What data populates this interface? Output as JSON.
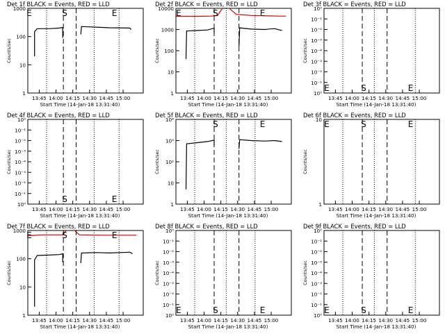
{
  "chart_data": [
    {
      "type": "line",
      "title": "Det 1f BLACK = Events, RED = LLD",
      "ylabel": "Counts/sec",
      "xlabel": "Start Time (14-Jan-18 13:31:40)",
      "yscale": "log",
      "ylim": [
        1,
        1000
      ],
      "ytick_labels": [
        "1",
        "10",
        "100",
        "1000"
      ],
      "xlim": [
        13.58,
        15.3
      ],
      "xtick_labels": [
        "13:45",
        "14:00",
        "14:15",
        "14:30",
        "14:45",
        "15:00"
      ],
      "markers": [
        {
          "label": "E",
          "time": 13.6,
          "pos": "top"
        },
        {
          "label": "S",
          "time": 14.13,
          "pos": "top"
        },
        {
          "label": "E",
          "time": 14.87,
          "pos": "top"
        }
      ],
      "dashed_lines": [
        14.11,
        14.3
      ],
      "dotted_lines": [
        13.86,
        14.57,
        14.94
      ],
      "series": [
        {
          "color": "#000000",
          "segments": [
            [
              [
                13.68,
                20
              ],
              [
                13.68,
                150
              ],
              [
                13.72,
                190
              ],
              [
                13.9,
                190
              ],
              [
                14.05,
                200
              ],
              [
                14.1,
                210
              ],
              [
                14.1,
                90
              ]
            ],
            [
              [
                14.37,
                120
              ],
              [
                14.38,
                225
              ],
              [
                14.6,
                215
              ],
              [
                14.8,
                205
              ],
              [
                15.1,
                200
              ],
              [
                15.12,
                175
              ]
            ]
          ]
        }
      ]
    },
    {
      "type": "line",
      "title": "Det 2f BLACK = Events, RED = LLD",
      "ylabel": "Counts/sec",
      "xlabel": "Start Time (14-Jan-18 13:31:40)",
      "yscale": "log",
      "ylim": [
        1,
        10000
      ],
      "ytick_labels": [
        "1",
        "10",
        "100",
        "1000",
        "10000"
      ],
      "xlim": [
        13.58,
        15.3
      ],
      "xtick_labels": [
        "13:45",
        "14:00",
        "14:15",
        "14:30",
        "14:45",
        "15:00"
      ],
      "markers": [
        {
          "label": "E",
          "time": 13.62,
          "pos": "top"
        },
        {
          "label": "S",
          "time": 14.17,
          "pos": "top"
        },
        {
          "label": "E",
          "time": 14.87,
          "pos": "top"
        }
      ],
      "dashed_lines": [
        14.15,
        14.52
      ],
      "dotted_lines": [
        13.86,
        14.33,
        14.76
      ],
      "series": [
        {
          "color": "#cc0000",
          "segments": [
            [
              [
                13.58,
                4200
              ],
              [
                13.9,
                4200
              ],
              [
                14.1,
                4300
              ],
              [
                14.2,
                4500
              ],
              [
                14.24,
                7000
              ],
              [
                14.27,
                9500
              ]
            ],
            [
              [
                14.38,
                9800
              ],
              [
                14.42,
                7500
              ],
              [
                14.48,
                5200
              ],
              [
                14.7,
                4600
              ],
              [
                15.1,
                4300
              ],
              [
                15.22,
                4300
              ]
            ]
          ]
        },
        {
          "color": "#000000",
          "segments": [
            [
              [
                13.73,
                40
              ],
              [
                13.74,
                850
              ],
              [
                13.9,
                900
              ],
              [
                14.05,
                950
              ],
              [
                14.15,
                1150
              ],
              [
                14.15,
                700
              ]
            ],
            [
              [
                14.52,
                160
              ],
              [
                14.53,
                1200
              ],
              [
                14.7,
                1050
              ],
              [
                14.9,
                1000
              ],
              [
                15.05,
                1100
              ],
              [
                15.16,
                900
              ]
            ]
          ]
        }
      ]
    },
    {
      "type": "line",
      "title": "Det 3f BLACK = Events, RED = LLD",
      "ylabel": "Counts/sec",
      "xlabel": "Start Time (14-Jan-18 13:31:40)",
      "yscale": "log",
      "ylim": [
        1,
        10
      ],
      "ytick_labels": [
        "10⁰",
        "10⁻¹",
        "10⁻²",
        "10⁻³",
        "10⁻⁴",
        "10⁻³",
        "10⁻²",
        "10⁻¹",
        "10⁰"
      ],
      "xlim": [
        13.58,
        15.3
      ],
      "xtick_labels": [
        "13:45",
        "14:00",
        "14:15",
        "14:30",
        "14:45",
        "15:00"
      ],
      "markers": [
        {
          "label": "E",
          "time": 13.62,
          "pos": "bottom"
        },
        {
          "label": "S",
          "time": 14.17,
          "pos": "bottom"
        },
        {
          "label": "E",
          "time": 14.87,
          "pos": "bottom"
        }
      ],
      "dashed_lines": [
        14.15,
        14.52
      ],
      "dotted_lines": [
        13.86,
        14.33,
        14.94
      ],
      "series": []
    },
    {
      "type": "line",
      "title": "Det 4f BLACK = Events, RED = LLD",
      "ylabel": "Counts/sec",
      "xlabel": "Start Time (14-Jan-18 13:31:40)",
      "yscale": "log",
      "ylim": [
        1,
        10
      ],
      "ytick_labels": [
        "10⁰",
        "10⁻¹",
        "10⁻²",
        "10⁻³",
        "10⁻⁴",
        "10⁻³",
        "10⁻²",
        "10⁻¹",
        "10⁰"
      ],
      "xlim": [
        13.58,
        15.3
      ],
      "xtick_labels": [
        "13:45",
        "14:00",
        "14:15",
        "14:30",
        "14:45",
        "15:00"
      ],
      "markers": [
        {
          "label": "S",
          "time": 14.13,
          "pos": "bottom"
        },
        {
          "label": "E",
          "time": 14.87,
          "pos": "bottom"
        }
      ],
      "dashed_lines": [
        14.11,
        14.3
      ],
      "dotted_lines": [
        13.86,
        14.57,
        14.94
      ],
      "series": []
    },
    {
      "type": "line",
      "title": "Det 5f BLACK = Events, RED = LLD",
      "ylabel": "Counts/sec",
      "xlabel": "Start Time (14-Jan-18 13:31:40)",
      "yscale": "log",
      "ylim": [
        1,
        10000
      ],
      "ytick_labels": [
        "1",
        "10",
        "10²",
        "10³",
        "10⁴"
      ],
      "xlim": [
        13.58,
        15.3
      ],
      "xtick_labels": [
        "13:45",
        "14:00",
        "14:15",
        "14:30",
        "14:45",
        "15:00"
      ],
      "markers": [
        {
          "label": "S",
          "time": 14.17,
          "pos": "top"
        },
        {
          "label": "E",
          "time": 14.87,
          "pos": "top"
        }
      ],
      "dashed_lines": [
        14.15,
        14.52
      ],
      "dotted_lines": [
        13.86,
        14.33,
        14.76
      ],
      "series": [
        {
          "color": "#000000",
          "segments": [
            [
              [
                13.73,
                5
              ],
              [
                13.74,
                700
              ],
              [
                13.9,
                800
              ],
              [
                14.05,
                900
              ],
              [
                14.15,
                1050
              ],
              [
                14.15,
                600
              ]
            ],
            [
              [
                14.52,
                400
              ],
              [
                14.53,
                1100
              ],
              [
                14.7,
                1000
              ],
              [
                14.9,
                950
              ],
              [
                15.05,
                1000
              ],
              [
                15.16,
                900
              ]
            ]
          ]
        }
      ]
    },
    {
      "type": "line",
      "title": "Det 6f BLACK = Events, RED = LLD",
      "ylabel": "Counts/sec",
      "xlabel": "Start Time (14-Jan-18 13:31:40)",
      "yscale": "log",
      "ylim": [
        1,
        10
      ],
      "ytick_labels": [
        "1",
        "10"
      ],
      "xlim": [
        13.58,
        15.3
      ],
      "xtick_labels": [
        "13:45",
        "14:00",
        "14:15",
        "14:30",
        "14:45",
        "15:00"
      ],
      "markers": [
        {
          "label": "E",
          "time": 13.62,
          "pos": "top"
        },
        {
          "label": "S",
          "time": 14.17,
          "pos": "top"
        },
        {
          "label": "E",
          "time": 14.87,
          "pos": "top"
        }
      ],
      "dashed_lines": [
        14.15,
        14.52
      ],
      "dotted_lines": [
        13.86,
        14.33,
        14.94
      ],
      "series": []
    },
    {
      "type": "line",
      "title": "Det 7f BLACK = Events, RED = LLD",
      "ylabel": "Counts/sec",
      "xlabel": "Start Time (14-Jan-18 13:31:40)",
      "yscale": "log",
      "ylim": [
        1,
        1000
      ],
      "ytick_labels": [
        "1",
        "10",
        "100",
        "1000"
      ],
      "xlim": [
        13.58,
        15.3
      ],
      "xtick_labels": [
        "13:45",
        "14:00",
        "14:15",
        "14:30",
        "14:45",
        "15:00"
      ],
      "markers": [
        {
          "label": "E",
          "time": 13.6,
          "pos": "top"
        },
        {
          "label": "S",
          "time": 14.13,
          "pos": "top"
        },
        {
          "label": "E",
          "time": 14.87,
          "pos": "top"
        }
      ],
      "dashed_lines": [
        14.11,
        14.3
      ],
      "dotted_lines": [
        13.86,
        14.57,
        14.94
      ],
      "series": [
        {
          "color": "#cc0000",
          "segments": [
            [
              [
                13.58,
                650
              ],
              [
                13.8,
                700
              ],
              [
                14.1,
                700
              ],
              [
                14.13,
                850
              ],
              [
                14.15,
                1000
              ]
            ],
            [
              [
                14.28,
                1000
              ],
              [
                14.31,
                850
              ],
              [
                14.35,
                700
              ],
              [
                14.7,
                680
              ],
              [
                15.1,
                680
              ],
              [
                15.2,
                680
              ]
            ]
          ]
        },
        {
          "color": "#000000",
          "segments": [
            [
              [
                13.68,
                2
              ],
              [
                13.68,
                90
              ],
              [
                13.72,
                130
              ],
              [
                13.9,
                135
              ],
              [
                14.05,
                140
              ],
              [
                14.1,
                150
              ],
              [
                14.1,
                75
              ]
            ],
            [
              [
                14.37,
                70
              ],
              [
                14.38,
                160
              ],
              [
                14.6,
                165
              ],
              [
                14.8,
                160
              ],
              [
                15.1,
                170
              ],
              [
                15.14,
                150
              ]
            ]
          ]
        }
      ]
    },
    {
      "type": "line",
      "title": "Det 8f BLACK = Events, RED = LLD",
      "ylabel": "Counts/sec",
      "xlabel": "Start Time (14-Jan-18 13:31:40)",
      "yscale": "log",
      "ylim": [
        1,
        10
      ],
      "ytick_labels": [
        "10⁰",
        "10⁻¹",
        "10⁻²",
        "10⁻³",
        "10⁻⁴",
        "10⁻³",
        "10⁻²",
        "10⁻¹",
        "10⁰"
      ],
      "xlim": [
        13.58,
        15.3
      ],
      "xtick_labels": [
        "13:45",
        "14:00",
        "14:15",
        "14:30",
        "14:45",
        "15:00"
      ],
      "markers": [
        {
          "label": "E",
          "time": 13.62,
          "pos": "bottom"
        },
        {
          "label": "S",
          "time": 14.17,
          "pos": "bottom"
        },
        {
          "label": "E",
          "time": 14.87,
          "pos": "bottom"
        }
      ],
      "dashed_lines": [
        14.15,
        14.52
      ],
      "dotted_lines": [
        13.86,
        14.33,
        14.76
      ],
      "series": []
    },
    {
      "type": "line",
      "title": "Det 9f BLACK = Events, RED = LLD",
      "ylabel": "Counts/sec",
      "xlabel": "Start Time (14-Jan-18 13:31:40)",
      "yscale": "log",
      "ylim": [
        1,
        10
      ],
      "ytick_labels": [
        "10⁰",
        "10⁻¹",
        "10⁻²",
        "10⁻³",
        "10⁻⁴",
        "10⁻³",
        "10⁻²",
        "10⁻¹",
        "10⁰"
      ],
      "xlim": [
        13.58,
        15.3
      ],
      "xtick_labels": [
        "13:45",
        "14:00",
        "14:15",
        "14:30",
        "14:45",
        "15:00"
      ],
      "markers": [
        {
          "label": "E",
          "time": 13.62,
          "pos": "bottom"
        },
        {
          "label": "S",
          "time": 14.17,
          "pos": "bottom"
        },
        {
          "label": "E",
          "time": 14.87,
          "pos": "bottom"
        }
      ],
      "dashed_lines": [
        14.15,
        14.52
      ],
      "dotted_lines": [
        13.86,
        14.33,
        14.94
      ],
      "series": []
    }
  ]
}
